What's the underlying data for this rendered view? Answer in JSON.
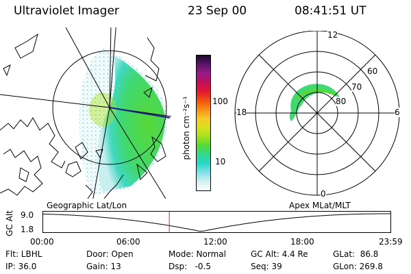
{
  "header": {
    "instrument": "Ultraviolet Imager",
    "date": "23 Sep 00",
    "time": "08:41:51 UT"
  },
  "geo_panel": {
    "label": "Geographic Lat/Lon"
  },
  "apex_panel": {
    "label": "Apex MLat/MLT",
    "mlt_labels": {
      "top": "12",
      "right": "6",
      "bottom": "0",
      "left": "18"
    },
    "lat_labels": [
      "60",
      "70",
      "80"
    ]
  },
  "colorbar": {
    "label": "photon cm⁻²s⁻¹",
    "ticks": [
      "100",
      "10"
    ],
    "colors": [
      "#1a0a2a",
      "#5a1468",
      "#9a1a8a",
      "#c0105a",
      "#e01830",
      "#f05010",
      "#f89018",
      "#f8c828",
      "#d8e020",
      "#a8e020",
      "#58d838",
      "#30d890",
      "#28d8c8",
      "#80e0e8",
      "#d0f0f0",
      "#ffffff"
    ]
  },
  "altitude_plot": {
    "ylabel": "GC Alt",
    "ymax": "9.0",
    "ymin": "1.8",
    "x_ticks": [
      "00:00",
      "06:00",
      "12:00",
      "18:00",
      "23:59"
    ],
    "current_marker_hour": 8.7,
    "min_hour": 10.9
  },
  "footer": {
    "flt": "Flt: LBHL",
    "ip": "IP: 36.0",
    "door": "Door: Open",
    "gain": "Gain: 13",
    "mode": "Mode: Normal",
    "dsp": "Dsp:   -0.5",
    "gcalt": "GC Alt: 4.4 Re",
    "seq": "Seq: 39",
    "glat": "GLat:  86.8",
    "glon": "GLon: 269.8"
  }
}
